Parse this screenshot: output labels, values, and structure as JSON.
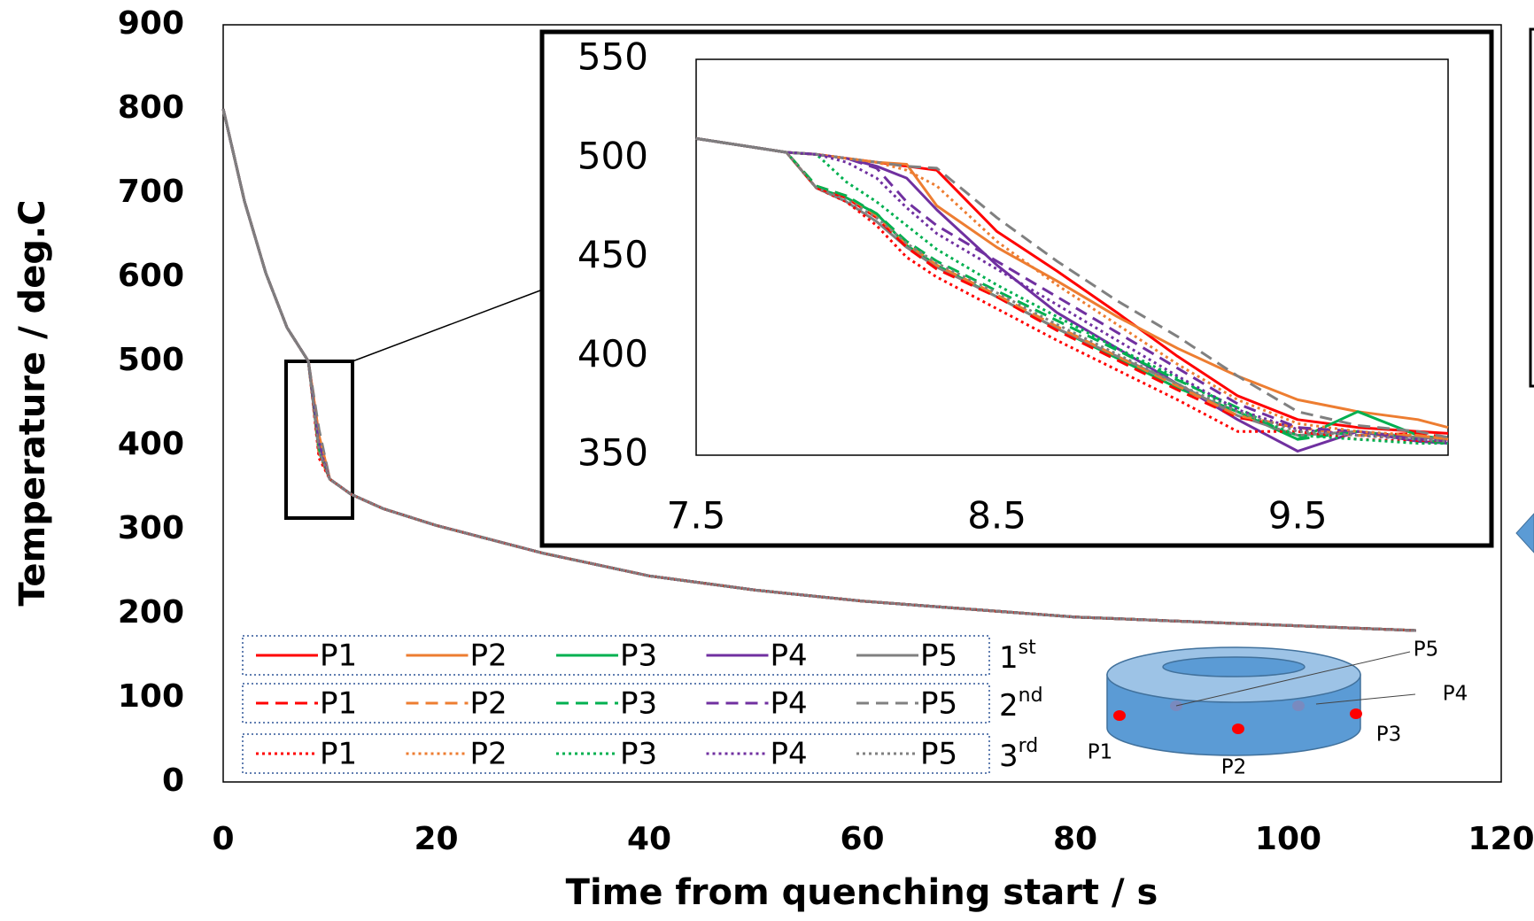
{
  "chart_data": [
    {
      "type": "line",
      "x_label": "Time from quenching start / s",
      "y_label": "Temperature / deg.C",
      "x": [
        0,
        2,
        4,
        6,
        8,
        9,
        10,
        12,
        15,
        20,
        30,
        40,
        50,
        60,
        80,
        100,
        112
      ],
      "xlim": [
        0,
        120
      ],
      "xticks": [
        0,
        20,
        40,
        60,
        80,
        100,
        120
      ],
      "ylim": [
        0,
        900
      ],
      "yticks": [
        0,
        100,
        200,
        300,
        400,
        500,
        600,
        700,
        800,
        900
      ],
      "legend_rows": [
        {
          "label": "1",
          "suffix": "st"
        },
        {
          "label": "2",
          "suffix": "nd"
        },
        {
          "label": "3",
          "suffix": "rd"
        }
      ],
      "series": [
        {
          "name": "P1",
          "color": "#ff0000",
          "dash": "solid",
          "values": [
            800,
            690,
            605,
            540,
            500,
            411,
            360,
            342,
            325,
            305,
            272,
            245,
            228,
            215,
            196,
            186,
            180
          ]
        },
        {
          "name": "P2",
          "color": "#ed7d31",
          "dash": "solid",
          "values": [
            800,
            690,
            605,
            540,
            500,
            412,
            360,
            342,
            325,
            305,
            272,
            245,
            228,
            215,
            196,
            186,
            180
          ]
        },
        {
          "name": "P3",
          "color": "#00b050",
          "dash": "solid",
          "values": [
            800,
            690,
            605,
            540,
            500,
            392,
            360,
            342,
            325,
            305,
            272,
            245,
            228,
            215,
            196,
            186,
            180
          ]
        },
        {
          "name": "P4",
          "color": "#7030a0",
          "dash": "solid",
          "values": [
            800,
            690,
            605,
            540,
            500,
            395,
            360,
            342,
            325,
            305,
            272,
            245,
            228,
            215,
            196,
            186,
            180
          ]
        },
        {
          "name": "P5",
          "color": "#808080",
          "dash": "solid",
          "values": [
            800,
            690,
            605,
            540,
            500,
            393,
            360,
            342,
            325,
            305,
            272,
            245,
            228,
            215,
            196,
            186,
            180
          ]
        },
        {
          "name": "P1",
          "color": "#ff0000",
          "dash": "dashed",
          "values": [
            800,
            690,
            605,
            540,
            500,
            390,
            360,
            342,
            325,
            305,
            272,
            245,
            228,
            215,
            196,
            186,
            180
          ]
        },
        {
          "name": "P2",
          "color": "#ed7d31",
          "dash": "dashed",
          "values": [
            800,
            690,
            605,
            540,
            500,
            392,
            360,
            342,
            325,
            305,
            272,
            245,
            228,
            215,
            196,
            186,
            180
          ]
        },
        {
          "name": "P3",
          "color": "#00b050",
          "dash": "dashed",
          "values": [
            800,
            690,
            605,
            540,
            500,
            396,
            360,
            342,
            325,
            305,
            272,
            245,
            228,
            215,
            196,
            186,
            180
          ]
        },
        {
          "name": "P4",
          "color": "#7030a0",
          "dash": "dashed",
          "values": [
            800,
            690,
            605,
            540,
            500,
            403,
            360,
            342,
            325,
            305,
            272,
            245,
            228,
            215,
            196,
            186,
            180
          ]
        },
        {
          "name": "P5",
          "color": "#808080",
          "dash": "dashed",
          "values": [
            800,
            690,
            605,
            540,
            500,
            419,
            360,
            342,
            325,
            305,
            272,
            245,
            228,
            215,
            196,
            186,
            180
          ]
        },
        {
          "name": "P1",
          "color": "#ff0000",
          "dash": "dotted",
          "values": [
            800,
            690,
            605,
            540,
            500,
            385,
            360,
            342,
            325,
            305,
            272,
            245,
            228,
            215,
            196,
            186,
            180
          ]
        },
        {
          "name": "P2",
          "color": "#ed7d31",
          "dash": "dotted",
          "values": [
            800,
            690,
            605,
            540,
            500,
            406,
            360,
            342,
            325,
            305,
            272,
            245,
            228,
            215,
            196,
            186,
            180
          ]
        },
        {
          "name": "P3",
          "color": "#00b050",
          "dash": "dotted",
          "values": [
            800,
            690,
            605,
            540,
            500,
            396,
            360,
            342,
            325,
            305,
            272,
            245,
            228,
            215,
            196,
            186,
            180
          ]
        },
        {
          "name": "P4",
          "color": "#7030a0",
          "dash": "dotted",
          "values": [
            800,
            690,
            605,
            540,
            500,
            399,
            360,
            342,
            325,
            305,
            272,
            245,
            228,
            215,
            196,
            186,
            180
          ]
        },
        {
          "name": "P5",
          "color": "#808080",
          "dash": "dotted",
          "values": [
            800,
            690,
            605,
            540,
            500,
            393,
            360,
            342,
            325,
            305,
            272,
            245,
            228,
            215,
            196,
            186,
            180
          ]
        }
      ]
    },
    {
      "type": "line",
      "x": [
        7.5,
        7.8,
        7.9,
        8,
        8.1,
        8.2,
        8.3,
        8.5,
        8.7,
        8.9,
        9.1,
        9.3,
        9.5,
        9.7,
        9.9,
        10
      ],
      "xlim": [
        7.5,
        10
      ],
      "xticks": [
        7.5,
        8.5,
        9.5
      ],
      "ylim": [
        350,
        550
      ],
      "yticks": [
        350,
        400,
        450,
        500,
        550
      ],
      "series": [
        {
          "color": "#ff0000",
          "dash": "solid",
          "values": [
            510,
            503,
            502,
            500,
            498,
            496,
            494,
            463,
            443,
            422,
            400,
            380,
            368,
            364,
            362,
            361
          ]
        },
        {
          "color": "#ed7d31",
          "dash": "solid",
          "values": [
            510,
            503,
            502,
            500,
            498,
            497,
            476,
            455,
            438,
            420,
            404,
            390,
            378,
            372,
            368,
            364
          ]
        },
        {
          "color": "#00b050",
          "dash": "solid",
          "values": [
            510,
            503,
            485,
            480,
            472,
            456,
            446,
            430,
            414,
            399,
            384,
            372,
            358,
            372,
            360,
            358
          ]
        },
        {
          "color": "#7030a0",
          "dash": "solid",
          "values": [
            510,
            503,
            502,
            500,
            496,
            490,
            474,
            446,
            422,
            404,
            386,
            368,
            352,
            362,
            357,
            356
          ]
        },
        {
          "color": "#808080",
          "dash": "solid",
          "values": [
            510,
            503,
            485,
            478,
            468,
            455,
            445,
            430,
            414,
            400,
            386,
            370,
            360,
            362,
            359,
            358
          ]
        },
        {
          "color": "#ff0000",
          "dash": "dashed",
          "values": [
            510,
            503,
            485,
            480,
            470,
            455,
            444,
            430,
            413,
            398,
            383,
            369,
            364,
            360,
            361,
            359
          ]
        },
        {
          "color": "#ed7d31",
          "dash": "dashed",
          "values": [
            510,
            503,
            486,
            481,
            471,
            457,
            446,
            431,
            415,
            400,
            385,
            370,
            364,
            360,
            360,
            358
          ]
        },
        {
          "color": "#00b050",
          "dash": "dashed",
          "values": [
            510,
            503,
            486,
            481,
            472,
            458,
            448,
            433,
            418,
            403,
            388,
            374,
            358,
            362,
            358,
            356
          ]
        },
        {
          "color": "#7030a0",
          "dash": "dashed",
          "values": [
            510,
            503,
            502,
            500,
            495,
            478,
            466,
            448,
            430,
            412,
            394,
            376,
            364,
            362,
            358,
            357
          ]
        },
        {
          "color": "#808080",
          "dash": "dashed",
          "values": [
            510,
            503,
            502,
            500,
            498,
            496,
            495,
            470,
            448,
            428,
            410,
            390,
            372,
            365,
            362,
            359
          ]
        },
        {
          "color": "#ff0000",
          "dash": "dotted",
          "values": [
            510,
            503,
            485,
            478,
            466,
            450,
            440,
            424,
            408,
            393,
            378,
            362,
            362,
            358,
            357,
            356
          ]
        },
        {
          "color": "#ed7d31",
          "dash": "dotted",
          "values": [
            510,
            503,
            502,
            500,
            498,
            494,
            486,
            458,
            436,
            416,
            396,
            378,
            366,
            362,
            360,
            358
          ]
        },
        {
          "color": "#00b050",
          "dash": "dotted",
          "values": [
            510,
            503,
            502,
            488,
            478,
            466,
            454,
            436,
            420,
            404,
            389,
            372,
            360,
            358,
            356,
            356
          ]
        },
        {
          "color": "#7030a0",
          "dash": "dotted",
          "values": [
            510,
            503,
            502,
            498,
            490,
            475,
            462,
            444,
            426,
            408,
            390,
            373,
            363,
            360,
            358,
            357
          ]
        },
        {
          "color": "#808080",
          "dash": "dotted",
          "values": [
            510,
            503,
            485,
            479,
            470,
            457,
            447,
            432,
            416,
            401,
            386,
            372,
            362,
            360,
            358,
            357
          ]
        }
      ]
    }
  ],
  "diagram": {
    "labels": [
      "P1",
      "P2",
      "P3",
      "P4",
      "P5"
    ]
  }
}
